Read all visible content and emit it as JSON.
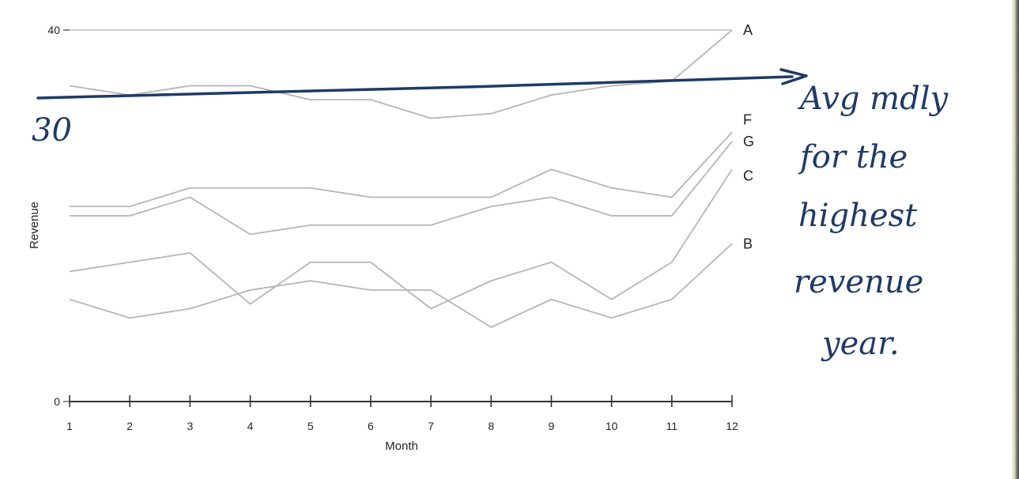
{
  "chart_data": {
    "type": "line",
    "xlabel": "Month",
    "ylabel": "Revenue",
    "x": [
      1,
      2,
      3,
      4,
      5,
      6,
      7,
      8,
      9,
      10,
      11,
      12
    ],
    "y_ticks": [
      0,
      40
    ],
    "ylim": [
      0,
      40
    ],
    "grid": false,
    "series": [
      {
        "name": "A",
        "values": [
          34,
          33,
          34,
          34,
          32.5,
          32.5,
          30.5,
          31,
          33,
          34,
          34.5,
          40
        ]
      },
      {
        "name": "F",
        "values": [
          21,
          21,
          23,
          23,
          23,
          22,
          22,
          22,
          25,
          23,
          22,
          29
        ]
      },
      {
        "name": "G",
        "values": [
          20,
          20,
          22,
          18,
          19,
          19,
          19,
          21,
          22,
          20,
          20,
          28
        ]
      },
      {
        "name": "C",
        "values": [
          14,
          15,
          16,
          10.5,
          15,
          15,
          10,
          13,
          15,
          11,
          15,
          25
        ]
      },
      {
        "name": "B",
        "values": [
          11,
          9,
          10,
          12,
          13,
          12,
          12,
          8,
          11,
          9,
          11,
          17
        ]
      }
    ],
    "annotations": [
      {
        "kind": "handwritten-arrow",
        "value_label": "30",
        "text_lines": [
          "Avg mdly",
          "for the",
          "highest",
          "revenue",
          "year."
        ]
      }
    ]
  }
}
